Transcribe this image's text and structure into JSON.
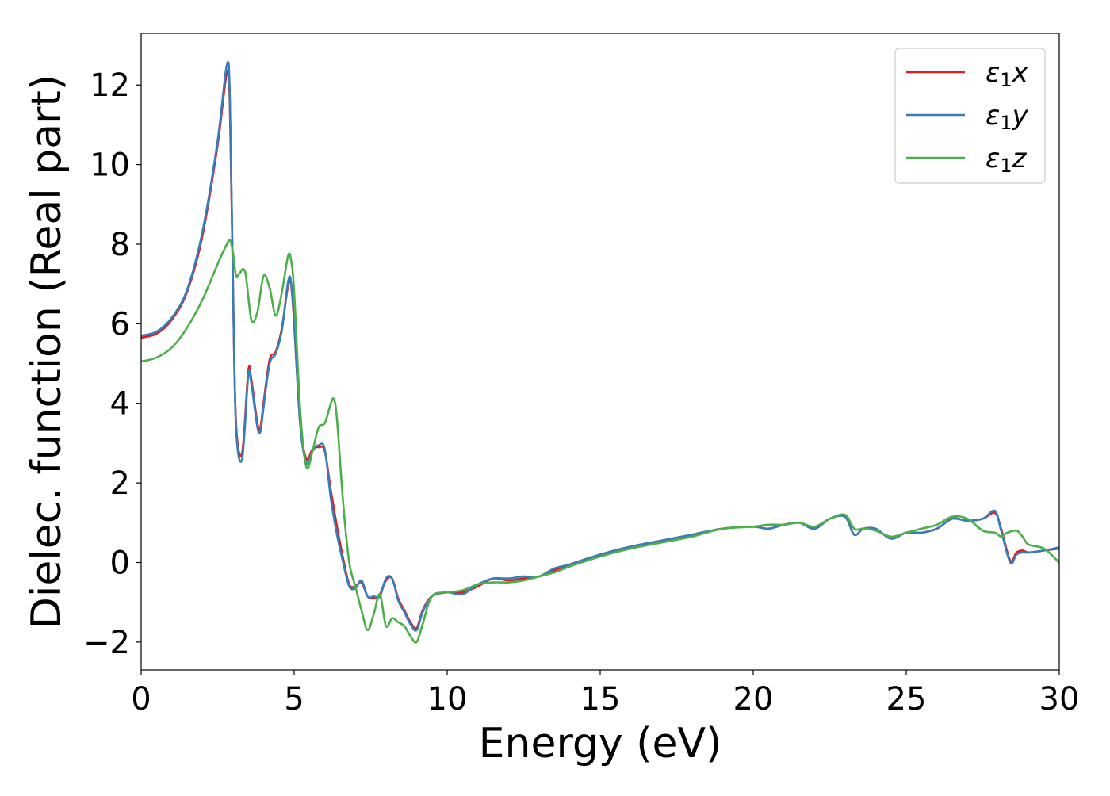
{
  "chart_data": {
    "type": "line",
    "title": "",
    "xlabel": "Energy (eV)",
    "ylabel": "Dielec. function (Real part)",
    "xlim": [
      0,
      30
    ],
    "ylim": [
      -2.7,
      13.3
    ],
    "xticks": [
      0,
      5,
      10,
      15,
      20,
      25,
      30
    ],
    "xtick_labels": [
      "0",
      "5",
      "10",
      "15",
      "20",
      "25",
      "30"
    ],
    "yticks": [
      -2,
      0,
      2,
      4,
      6,
      8,
      10,
      12
    ],
    "ytick_labels": [
      "−2",
      "0",
      "2",
      "4",
      "6",
      "8",
      "10",
      "12"
    ],
    "grid": false,
    "legend_position": "top-right",
    "series": [
      {
        "name": "ε₁x",
        "legend_sym": "ε",
        "legend_sub": "1",
        "legend_var": "x",
        "color": "#e41a1c",
        "x": [
          0,
          0.5,
          1.0,
          1.5,
          2.0,
          2.5,
          2.8,
          2.9,
          3.0,
          3.1,
          3.3,
          3.5,
          3.6,
          3.8,
          3.9,
          4.0,
          4.2,
          4.4,
          4.6,
          4.8,
          4.9,
          5.0,
          5.2,
          5.4,
          5.6,
          5.8,
          6.0,
          6.2,
          6.4,
          6.6,
          6.8,
          7.0,
          7.2,
          7.4,
          7.6,
          7.8,
          8.0,
          8.2,
          8.4,
          8.6,
          8.8,
          9.0,
          9.2,
          9.5,
          10.0,
          10.5,
          11.0,
          11.5,
          12.0,
          12.5,
          13.0,
          13.5,
          14.0,
          15.0,
          16.0,
          17.0,
          18.0,
          19.0,
          20.0,
          20.5,
          21.0,
          21.5,
          22.0,
          22.5,
          23.0,
          23.3,
          23.6,
          24.0,
          24.5,
          25.0,
          25.5,
          26.0,
          26.5,
          27.0,
          27.5,
          27.9,
          28.1,
          28.4,
          28.6,
          28.8,
          29.0,
          29.5,
          30.0
        ],
        "y": [
          5.65,
          5.75,
          6.1,
          6.8,
          8.2,
          10.5,
          12.3,
          11.5,
          7.0,
          3.5,
          2.75,
          4.8,
          4.6,
          3.5,
          3.4,
          4.0,
          5.1,
          5.3,
          5.9,
          6.95,
          7.0,
          6.0,
          3.5,
          2.6,
          2.85,
          2.9,
          2.8,
          1.8,
          0.9,
          0.1,
          -0.55,
          -0.6,
          -0.5,
          -0.85,
          -0.9,
          -0.8,
          -0.45,
          -0.4,
          -0.9,
          -1.2,
          -1.5,
          -1.65,
          -1.2,
          -0.85,
          -0.75,
          -0.75,
          -0.6,
          -0.4,
          -0.45,
          -0.4,
          -0.35,
          -0.2,
          -0.05,
          0.2,
          0.4,
          0.55,
          0.7,
          0.85,
          0.9,
          0.85,
          0.95,
          1.0,
          0.85,
          1.1,
          1.15,
          0.7,
          0.85,
          0.85,
          0.6,
          0.75,
          0.75,
          0.85,
          1.1,
          1.05,
          1.1,
          1.25,
          0.85,
          0.05,
          0.25,
          0.3,
          0.25,
          0.3,
          0.35
        ]
      },
      {
        "name": "ε₁y",
        "legend_sym": "ε",
        "legend_sub": "1",
        "legend_var": "y",
        "color": "#377eb8",
        "x": [
          0,
          0.5,
          1.0,
          1.5,
          2.0,
          2.5,
          2.8,
          2.9,
          3.0,
          3.1,
          3.3,
          3.5,
          3.6,
          3.8,
          3.9,
          4.0,
          4.2,
          4.4,
          4.6,
          4.8,
          4.9,
          5.0,
          5.2,
          5.4,
          5.6,
          5.8,
          6.0,
          6.2,
          6.4,
          6.6,
          6.8,
          7.0,
          7.2,
          7.4,
          7.6,
          7.8,
          8.0,
          8.2,
          8.4,
          8.6,
          8.8,
          9.0,
          9.2,
          9.5,
          10.0,
          10.5,
          11.0,
          11.5,
          12.0,
          12.5,
          13.0,
          13.5,
          14.0,
          15.0,
          16.0,
          17.0,
          18.0,
          19.0,
          20.0,
          20.5,
          21.0,
          21.5,
          22.0,
          22.5,
          23.0,
          23.3,
          23.6,
          24.0,
          24.5,
          25.0,
          25.5,
          26.0,
          26.5,
          27.0,
          27.5,
          27.9,
          28.1,
          28.4,
          28.6,
          28.8,
          29.0,
          29.5,
          30.0
        ],
        "y": [
          5.7,
          5.8,
          6.15,
          6.85,
          8.3,
          10.6,
          12.5,
          11.7,
          7.1,
          3.4,
          2.6,
          4.7,
          4.5,
          3.4,
          3.3,
          3.9,
          5.0,
          5.25,
          5.85,
          7.05,
          7.05,
          6.05,
          3.45,
          2.5,
          2.8,
          2.95,
          2.85,
          1.6,
          0.7,
          0.0,
          -0.6,
          -0.65,
          -0.45,
          -0.85,
          -0.85,
          -0.85,
          -0.4,
          -0.4,
          -0.95,
          -1.25,
          -1.55,
          -1.7,
          -1.25,
          -0.85,
          -0.75,
          -0.8,
          -0.55,
          -0.4,
          -0.4,
          -0.35,
          -0.35,
          -0.15,
          -0.05,
          0.2,
          0.4,
          0.55,
          0.7,
          0.85,
          0.9,
          0.85,
          0.95,
          1.0,
          0.85,
          1.1,
          1.15,
          0.7,
          0.85,
          0.85,
          0.6,
          0.75,
          0.75,
          0.85,
          1.1,
          1.05,
          1.1,
          1.3,
          0.8,
          0.0,
          0.2,
          0.25,
          0.25,
          0.3,
          0.38
        ]
      },
      {
        "name": "ε₁z",
        "legend_sym": "ε",
        "legend_sub": "1",
        "legend_var": "z",
        "color": "#4daf4a",
        "x": [
          0,
          0.5,
          1.0,
          1.5,
          2.0,
          2.5,
          2.8,
          2.9,
          3.0,
          3.1,
          3.2,
          3.4,
          3.6,
          3.8,
          4.0,
          4.2,
          4.4,
          4.6,
          4.8,
          4.9,
          5.0,
          5.2,
          5.4,
          5.6,
          5.8,
          6.0,
          6.2,
          6.3,
          6.4,
          6.6,
          6.8,
          7.0,
          7.2,
          7.4,
          7.6,
          7.8,
          8.0,
          8.2,
          8.4,
          8.6,
          8.8,
          9.0,
          9.2,
          9.5,
          10.0,
          10.5,
          11.0,
          11.5,
          12.0,
          12.5,
          13.0,
          13.5,
          14.0,
          15.0,
          16.0,
          17.0,
          18.0,
          19.0,
          20.0,
          20.5,
          21.0,
          21.5,
          22.0,
          22.5,
          23.0,
          23.3,
          23.6,
          24.0,
          24.5,
          25.0,
          25.5,
          26.0,
          26.5,
          27.0,
          27.5,
          27.9,
          28.1,
          28.3,
          28.6,
          28.8,
          29.0,
          29.5,
          30.0
        ],
        "y": [
          5.05,
          5.15,
          5.4,
          5.9,
          6.6,
          7.5,
          8.0,
          8.1,
          7.8,
          7.2,
          7.25,
          7.3,
          6.1,
          6.3,
          7.2,
          6.9,
          6.2,
          6.8,
          7.7,
          7.6,
          6.8,
          3.8,
          2.4,
          2.8,
          3.4,
          3.5,
          4.0,
          4.1,
          3.6,
          1.5,
          0.0,
          -0.6,
          -1.2,
          -1.7,
          -1.3,
          -0.8,
          -1.6,
          -1.4,
          -1.5,
          -1.6,
          -1.85,
          -2.0,
          -1.55,
          -0.85,
          -0.75,
          -0.7,
          -0.55,
          -0.5,
          -0.5,
          -0.45,
          -0.35,
          -0.25,
          -0.1,
          0.15,
          0.35,
          0.5,
          0.65,
          0.85,
          0.9,
          0.95,
          0.95,
          1.0,
          0.9,
          1.1,
          1.2,
          0.85,
          0.85,
          0.8,
          0.65,
          0.75,
          0.85,
          0.95,
          1.15,
          1.1,
          0.8,
          0.75,
          0.65,
          0.75,
          0.8,
          0.65,
          0.45,
          0.35,
          0.0
        ]
      }
    ]
  }
}
